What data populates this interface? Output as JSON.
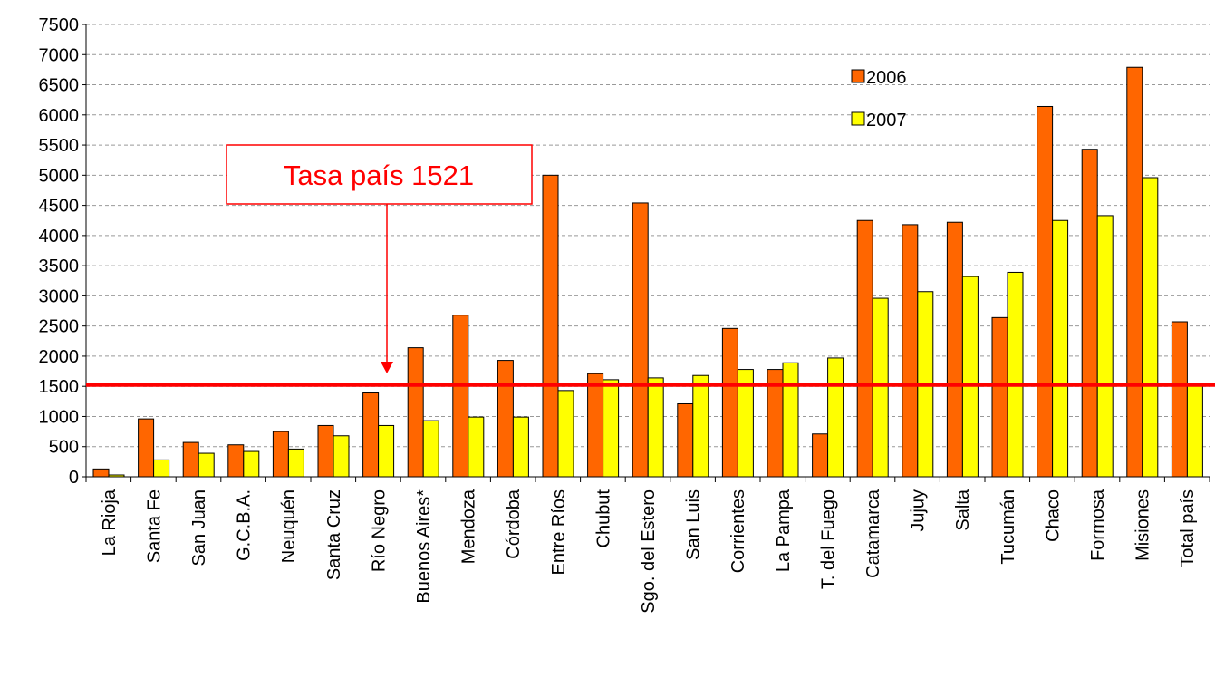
{
  "chart_data": {
    "type": "bar",
    "categories": [
      "La Rioja",
      "Santa Fe",
      "San Juan",
      "G.C.B.A.",
      "Neuquén",
      "Santa Cruz",
      "Río Negro",
      "Buenos Aires*",
      "Mendoza",
      "Córdoba",
      "Entre Ríos",
      "Chubut",
      "Sgo. del Estero",
      "San Luis",
      "Corrientes",
      "La Pampa",
      "T. del Fuego",
      "Catamarca",
      "Jujuy",
      "Salta",
      "Tucumán",
      "Chaco",
      "Formosa",
      "Misiones",
      "Total país"
    ],
    "series": [
      {
        "name": "2006",
        "color": "#ff6600",
        "values": [
          130,
          960,
          570,
          530,
          750,
          850,
          1390,
          2140,
          2680,
          1930,
          5000,
          1710,
          4540,
          1210,
          2460,
          1780,
          710,
          4250,
          4180,
          4220,
          2640,
          6140,
          5430,
          6790,
          2570
        ]
      },
      {
        "name": "2007",
        "color": "#ffff00",
        "values": [
          30,
          280,
          390,
          420,
          460,
          680,
          850,
          930,
          990,
          990,
          1430,
          1610,
          1640,
          1680,
          1780,
          1890,
          1970,
          2960,
          3070,
          3320,
          3390,
          4250,
          4330,
          4960,
          1521
        ]
      }
    ],
    "ylim": [
      0,
      7500
    ],
    "yticks": [
      0,
      500,
      1000,
      1500,
      2000,
      2500,
      3000,
      3500,
      4000,
      4500,
      5000,
      5500,
      6000,
      6500,
      7000,
      7500
    ],
    "grid": true,
    "legend": "upper right",
    "reference_line": {
      "value": 1521,
      "color": "#ff0000",
      "annotation": "Tasa país 1521"
    }
  }
}
